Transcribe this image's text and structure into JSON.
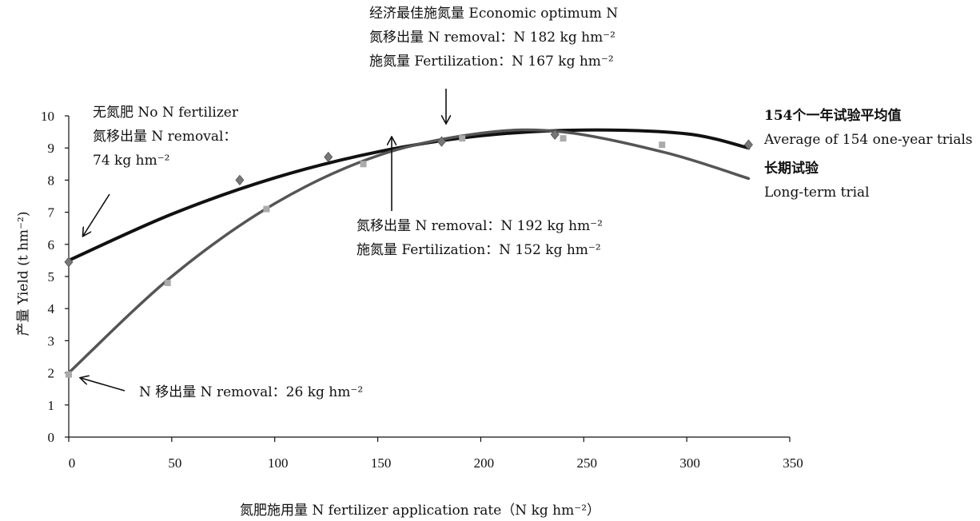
{
  "chart_data": {
    "type": "scatter",
    "xlabel": "氮肥施用量 N fertilizer application rate（N kg hm⁻²）",
    "ylabel": "产量 Yield (t hm⁻²)",
    "xlim": [
      0,
      350
    ],
    "ylim": [
      0,
      10
    ],
    "x_ticks": [
      "0",
      "50",
      "100",
      "150",
      "200",
      "250",
      "300",
      "350"
    ],
    "y_ticks": [
      "0",
      "1",
      "2",
      "3",
      "4",
      "5",
      "6",
      "7",
      "8",
      "9",
      "10"
    ],
    "series": [
      {
        "name": "154个一年试验平均值 Average of 154 one-year trials",
        "color": "#111111",
        "marker": "diamond",
        "points": [
          [
            0,
            5.45
          ],
          [
            83,
            8.0
          ],
          [
            126,
            8.72
          ],
          [
            181,
            9.2
          ],
          [
            236,
            9.42
          ],
          [
            330,
            9.1
          ]
        ],
        "fit": [
          [
            0,
            5.5
          ],
          [
            50,
            6.94
          ],
          [
            100,
            8.07
          ],
          [
            150,
            8.88
          ],
          [
            200,
            9.38
          ],
          [
            250,
            9.56
          ],
          [
            300,
            9.44
          ],
          [
            330,
            9.0
          ]
        ]
      },
      {
        "name": "长期试验 Long-term trial",
        "color": "#555555",
        "marker": "square",
        "points": [
          [
            0,
            1.95
          ],
          [
            48,
            4.8
          ],
          [
            96,
            7.1
          ],
          [
            143,
            8.5
          ],
          [
            191,
            9.3
          ],
          [
            240,
            9.3
          ],
          [
            288,
            9.1
          ]
        ],
        "fit": [
          [
            0,
            2.0
          ],
          [
            50,
            5.0
          ],
          [
            100,
            7.27
          ],
          [
            150,
            8.76
          ],
          [
            200,
            9.46
          ],
          [
            240,
            9.5
          ],
          [
            290,
            8.85
          ],
          [
            330,
            8.05
          ]
        ]
      }
    ],
    "annotations": {
      "no_n": [
        "无氮肥 No N fertilizer",
        "氮移出量 N removal：",
        "74 kg hm⁻²"
      ],
      "economic_optimum": [
        "经济最佳施氮量 Economic optimum N",
        "氮移出量 N removal：N 182 kg hm⁻²",
        "施氮量 Fertilization：N 167 kg hm⁻²"
      ],
      "long_term_optimum": [
        "氮移出量 N removal：N 192 kg hm⁻²",
        "施氮量 Fertilization：N 152 kg hm⁻²"
      ],
      "n_removal_low": "N 移出量 N removal：26 kg hm⁻²",
      "legend_avg_cn": "154个一年试验平均值",
      "legend_avg_en": "Average of 154 one-year trials",
      "legend_long_cn": "长期试验",
      "legend_long_en": "Long-term trial"
    }
  }
}
